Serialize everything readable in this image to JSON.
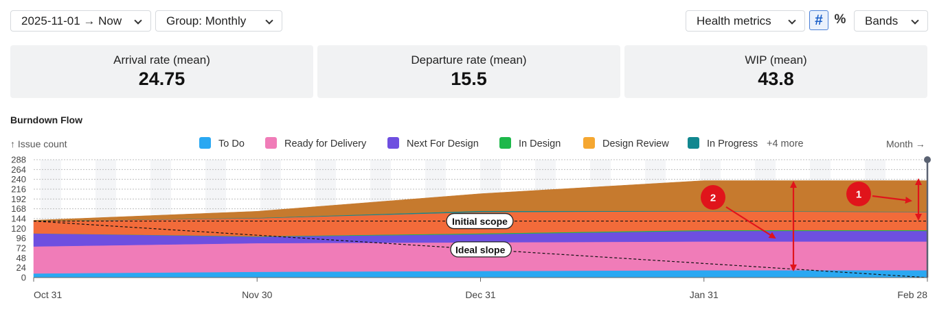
{
  "toolbar": {
    "date_range": "2025-11-01 → Now",
    "group": "Group: Monthly",
    "metrics": "Health metrics",
    "count_icon": "#",
    "percent_icon": "%",
    "bands": "Bands"
  },
  "kpis": [
    {
      "label": "Arrival rate (mean)",
      "value": "24.75"
    },
    {
      "label": "Departure rate (mean)",
      "value": "15.5"
    },
    {
      "label": "WIP (mean)",
      "value": "43.8"
    }
  ],
  "chart_title": "Burndown Flow",
  "y_caption": "↑ Issue count",
  "x_caption": "Month →",
  "legend": [
    {
      "name": "To Do",
      "color": "#2aa8f2"
    },
    {
      "name": "Ready for Delivery",
      "color": "#f07cb8"
    },
    {
      "name": "Next For Design",
      "color": "#6e4fe0"
    },
    {
      "name": "In Design",
      "color": "#1db84a"
    },
    {
      "name": "Design Review",
      "color": "#f5a731"
    },
    {
      "name": "In Progress",
      "color": "#11878f"
    }
  ],
  "legend_more": "+4 more",
  "annotations": {
    "initial_scope": "Initial scope",
    "ideal_slope": "Ideal slope",
    "badge1": "1",
    "badge2": "2"
  },
  "chart_data": {
    "type": "area",
    "stacked": true,
    "x": [
      "Oct 31",
      "Nov 30",
      "Dec 31",
      "Jan 31",
      "Feb 28"
    ],
    "ylim": [
      0,
      288
    ],
    "yticks": [
      0,
      24,
      48,
      72,
      96,
      120,
      144,
      168,
      192,
      216,
      240,
      264,
      288
    ],
    "series": [
      {
        "name": "To Do",
        "color": "#2aa8f2",
        "values": [
          10,
          14,
          16,
          18,
          18
        ]
      },
      {
        "name": "Ready for Delivery",
        "color": "#f07cb8",
        "values": [
          66,
          70,
          70,
          70,
          70
        ]
      },
      {
        "name": "Next For Design",
        "color": "#6e4fe0",
        "values": [
          32,
          16,
          20,
          26,
          26
        ]
      },
      {
        "name": "In Design",
        "color": "#1db84a",
        "values": [
          0,
          1,
          2,
          2,
          2
        ]
      },
      {
        "name": "",
        "color": "#f26b3a",
        "values": [
          30,
          44,
          52,
          46,
          44
        ]
      },
      {
        "name": "In Progress",
        "color": "#11878f",
        "values": [
          0,
          1,
          3,
          1,
          1
        ]
      },
      {
        "name": "",
        "color": "#c67a2e",
        "values": [
          2,
          16,
          42,
          74,
          76
        ]
      }
    ],
    "initial_scope": 138,
    "ideal_slope": [
      [
        0,
        138
      ],
      [
        4,
        0
      ]
    ],
    "grid": true
  }
}
